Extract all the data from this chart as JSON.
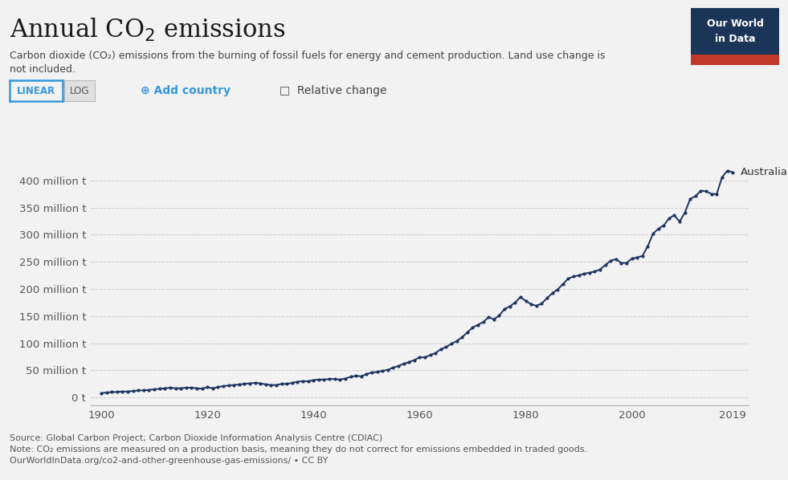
{
  "title_part1": "Annual CO",
  "title_sub": "2",
  "title_part2": " emissions",
  "subtitle": "Carbon dioxide (CO₂) emissions from the burning of fossil fuels for energy and cement production. Land use change is\nnot included.",
  "source_line1": "Source: Global Carbon Project; Carbon Dioxide Information Analysis Centre (CDIAC)",
  "source_line2": "Note: CO₂ emissions are measured on a production basis, meaning they do not correct for emissions embedded in traded goods.",
  "source_line3": "OurWorldInData.org/co2-and-other-greenhouse-gas-emissions/ • CC BY",
  "line_color": "#1d3461",
  "bg_color": "#f2f2f2",
  "label_color": "#555555",
  "grid_color": "#cccccc",
  "country_label": "Australia",
  "button_linear_color": "#3498db",
  "owid_bg": "#1a3558",
  "owid_red": "#c0392b",
  "title_color": "#1a1a1a",
  "years": [
    1900,
    1901,
    1902,
    1903,
    1904,
    1905,
    1906,
    1907,
    1908,
    1909,
    1910,
    1911,
    1912,
    1913,
    1914,
    1915,
    1916,
    1917,
    1918,
    1919,
    1920,
    1921,
    1922,
    1923,
    1924,
    1925,
    1926,
    1927,
    1928,
    1929,
    1930,
    1931,
    1932,
    1933,
    1934,
    1935,
    1936,
    1937,
    1938,
    1939,
    1940,
    1941,
    1942,
    1943,
    1944,
    1945,
    1946,
    1947,
    1948,
    1949,
    1950,
    1951,
    1952,
    1953,
    1954,
    1955,
    1956,
    1957,
    1958,
    1959,
    1960,
    1961,
    1962,
    1963,
    1964,
    1965,
    1966,
    1967,
    1968,
    1969,
    1970,
    1971,
    1972,
    1973,
    1974,
    1975,
    1976,
    1977,
    1978,
    1979,
    1980,
    1981,
    1982,
    1983,
    1984,
    1985,
    1986,
    1987,
    1988,
    1989,
    1990,
    1991,
    1992,
    1993,
    1994,
    1995,
    1996,
    1997,
    1998,
    1999,
    2000,
    2001,
    2002,
    2003,
    2004,
    2005,
    2006,
    2007,
    2008,
    2009,
    2010,
    2011,
    2012,
    2013,
    2014,
    2015,
    2016,
    2017,
    2018,
    2019
  ],
  "values": [
    8,
    9,
    10,
    10,
    11,
    11,
    12,
    13,
    13,
    14,
    15,
    16,
    17,
    18,
    17,
    17,
    18,
    18,
    17,
    16,
    19,
    17,
    19,
    21,
    22,
    23,
    24,
    25,
    26,
    27,
    26,
    24,
    23,
    23,
    25,
    25,
    27,
    29,
    30,
    30,
    32,
    33,
    33,
    34,
    34,
    33,
    35,
    38,
    40,
    39,
    43,
    46,
    47,
    49,
    51,
    55,
    58,
    62,
    65,
    69,
    74,
    74,
    78,
    82,
    89,
    93,
    99,
    104,
    111,
    120,
    129,
    134,
    139,
    148,
    144,
    151,
    163,
    168,
    175,
    185,
    178,
    172,
    169,
    173,
    183,
    192,
    199,
    209,
    219,
    223,
    225,
    228,
    230,
    232,
    236,
    244,
    252,
    255,
    248,
    248,
    256,
    258,
    261,
    279,
    302,
    311,
    317,
    330,
    336,
    324,
    341,
    366,
    371,
    381,
    380,
    375,
    375,
    406,
    418,
    415
  ],
  "yticks": [
    0,
    50,
    100,
    150,
    200,
    250,
    300,
    350,
    400
  ],
  "ytick_labels": [
    "0 t",
    "50 million t",
    "100 million t",
    "150 million t",
    "200 million t",
    "250 million t",
    "300 million t",
    "350 million t",
    "400 million t"
  ],
  "xticks": [
    1900,
    1920,
    1940,
    1960,
    1980,
    2000,
    2019
  ],
  "ylim": [
    -15,
    445
  ],
  "xlim": [
    1898,
    2022
  ]
}
